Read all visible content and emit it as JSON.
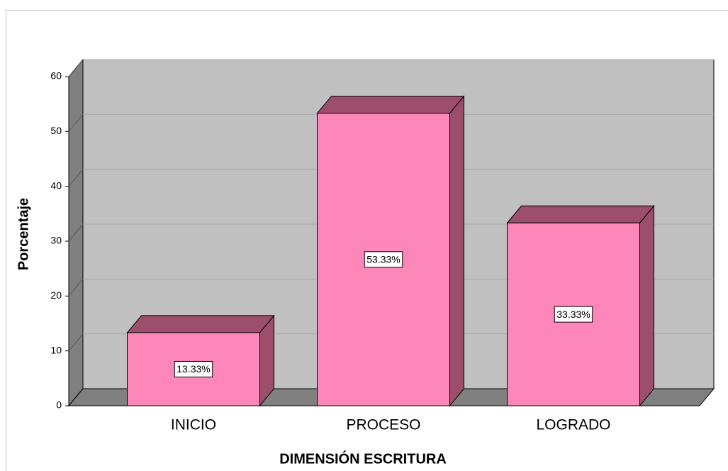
{
  "chart_data": {
    "type": "bar3d",
    "x_label": "DIMENSIÓN ESCRITURA",
    "y_label": "Porcentaje",
    "categories": [
      "INICIO",
      "PROCESO",
      "LOGRADO"
    ],
    "values": [
      13.33,
      53.33,
      33.33
    ],
    "value_labels": [
      "13.33%",
      "53.33%",
      "33.33%"
    ],
    "color": "#fe87b9",
    "ylim": [
      0,
      60
    ],
    "yticks": [
      0,
      10,
      20,
      30,
      40,
      50,
      60
    ],
    "grid": true
  }
}
